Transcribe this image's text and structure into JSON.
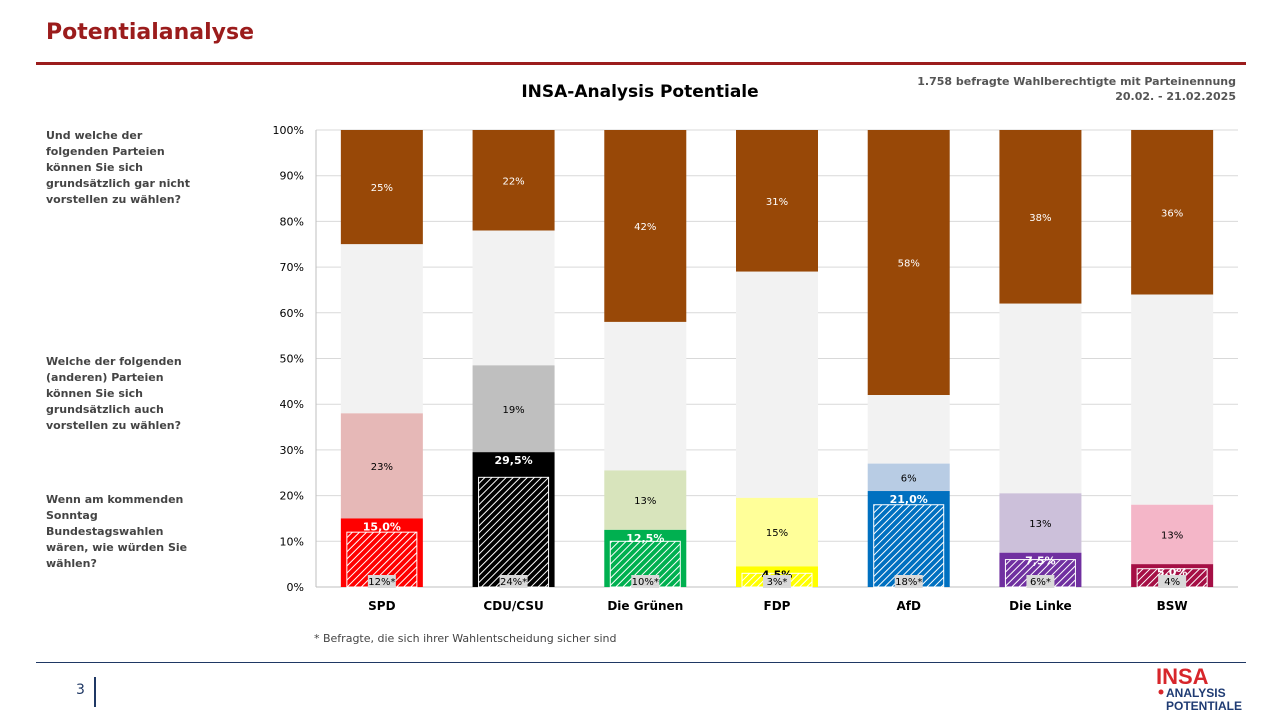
{
  "slide": {
    "title": "Potentialanalyse",
    "page_number": "3",
    "info_line1": "1.758 befragte Wahlberechtigte mit Parteinennung",
    "info_line2": "20.02. - 21.02.2025",
    "footnote": "* Befragte, die sich ihrer Wahlentscheidung sicher sind",
    "questions": [
      "Und welche der folgenden Parteien können Sie sich grundsätzlich gar nicht vorstellen zu wählen?",
      "Welche der folgenden (anderen) Parteien können Sie sich grundsätzlich auch vorstellen zu wählen?",
      "Wenn am kommenden Sonntag Bundestagswahlen wären, wie würden Sie wählen?"
    ],
    "logo": {
      "line1": "INSA",
      "line2": "ANALYSIS",
      "line3": "POTENTIALE",
      "red": "#d7262b",
      "blue": "#1f3b73"
    }
  },
  "chart_data": {
    "type": "bar",
    "stacked": true,
    "title": "INSA-Analysis Potentiale",
    "ylim": [
      0,
      100
    ],
    "yticks": [
      "0%",
      "10%",
      "20%",
      "30%",
      "40%",
      "50%",
      "60%",
      "70%",
      "80%",
      "90%",
      "100%"
    ],
    "categories": [
      "SPD",
      "CDU/CSU",
      "Die Grünen",
      "FDP",
      "AfD",
      "Die Linke",
      "BSW"
    ],
    "vote_share": [
      15.0,
      29.5,
      12.5,
      4.5,
      21.0,
      7.5,
      5.0
    ],
    "vote_share_labels": [
      "15,0%",
      "29,5%",
      "12,5%",
      "4,5%",
      "21,0%",
      "7,5%",
      "5,0%"
    ],
    "certain_share": [
      12,
      24,
      10,
      3,
      18,
      6,
      4
    ],
    "certain_labels": [
      "12%*",
      "24%*",
      "10%*",
      "3%*",
      "18%*",
      "6%*",
      "4%"
    ],
    "potential_additional": [
      23,
      19,
      13,
      15,
      6,
      13,
      13
    ],
    "potential_labels": [
      "23%",
      "19%",
      "13%",
      "15%",
      "6%",
      "13%",
      "13%"
    ],
    "rejection": [
      25,
      22,
      42,
      31,
      58,
      38,
      36
    ],
    "rejection_labels": [
      "25%",
      "22%",
      "42%",
      "31%",
      "58%",
      "38%",
      "36%"
    ],
    "colors": {
      "party": [
        "#ff0000",
        "#000000",
        "#00b050",
        "#ffff00",
        "#0070c0",
        "#7030a0",
        "#a50f45"
      ],
      "potential": [
        "#e6b8b7",
        "#bfbfbf",
        "#d8e4bc",
        "#ffff99",
        "#b8cce4",
        "#ccc0da",
        "#f4b6c8"
      ],
      "rejection": "#984807",
      "rest": "#f2f2f2"
    }
  }
}
